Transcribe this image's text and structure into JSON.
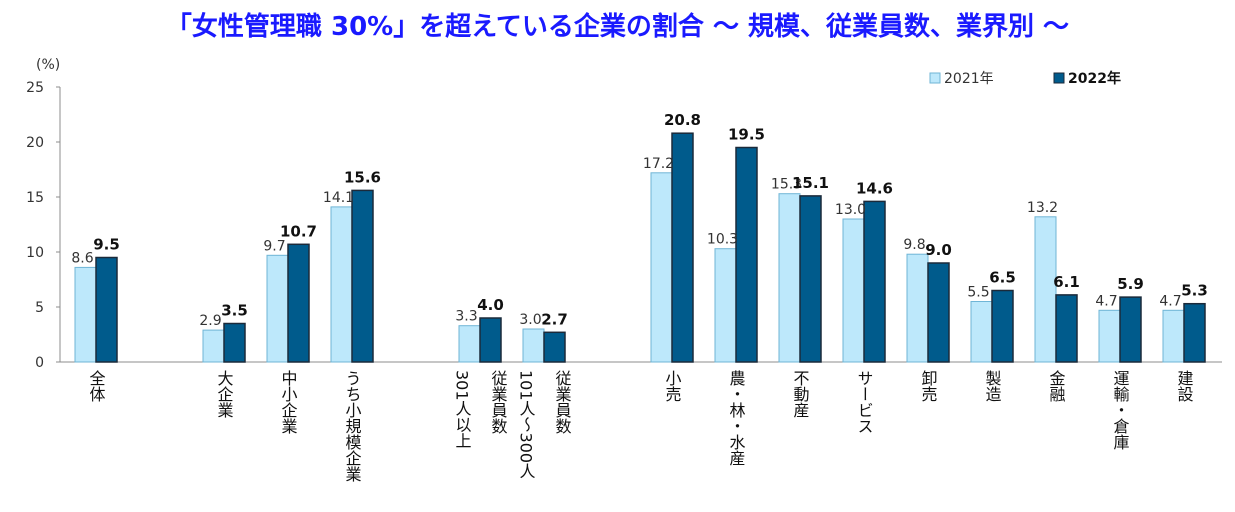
{
  "colors": {
    "title": "#1a1aff",
    "series2021": "#bde8fb",
    "series2021_edge": "#6fb5d6",
    "series2022": "#005b8c",
    "series2022_edge": "#1b2a3a",
    "axis": "#8c8c8c",
    "text": "#333333"
  },
  "chart_data": {
    "type": "bar",
    "title": "「女性管理職 30%」を超えている企業の割合 ～ 規模、従業員数、業界別 ～",
    "ylabel": "(%)",
    "ylim": [
      0,
      25
    ],
    "yticks": [
      0,
      5,
      10,
      15,
      20,
      25
    ],
    "legend_position": "top-right",
    "categories": [
      "全体",
      "大企業",
      "中小企業",
      "うち小規模企業",
      "301人以上",
      "101人～300人",
      "小売",
      "農・林・水産",
      "不動産",
      "サービス",
      "卸売",
      "製造",
      "金融",
      "運輸・倉庫",
      "建設"
    ],
    "category_label_lines": [
      [
        "全体"
      ],
      [
        "大企業"
      ],
      [
        "中小企業"
      ],
      [
        "うち小規模企業"
      ],
      [
        "301人以上",
        "従業員数"
      ],
      [
        "101人～300人",
        "従業員数"
      ],
      [
        "小売"
      ],
      [
        "農・林・水産"
      ],
      [
        "不動産"
      ],
      [
        "サービス"
      ],
      [
        "卸売"
      ],
      [
        "製造"
      ],
      [
        "金融"
      ],
      [
        "運輸・倉庫"
      ],
      [
        "建設"
      ]
    ],
    "series": [
      {
        "name": "2021年",
        "values": [
          8.6,
          2.9,
          9.7,
          14.1,
          3.3,
          3.0,
          17.2,
          10.3,
          15.3,
          13.0,
          9.8,
          5.5,
          13.2,
          4.7,
          4.7
        ],
        "labels": [
          "8.6",
          "2.9",
          "9.7",
          "14.1",
          "3.3",
          "3.0",
          "17.2",
          "10.3",
          "15.3",
          "13.0",
          "9.8",
          "5.5",
          "13.2",
          "4.7",
          "4.7"
        ]
      },
      {
        "name": "2022年",
        "values": [
          9.5,
          3.5,
          10.7,
          15.6,
          4.0,
          2.7,
          20.8,
          19.5,
          15.1,
          14.6,
          9.0,
          6.5,
          6.1,
          5.9,
          5.3
        ],
        "labels": [
          "9.5",
          "3.5",
          "10.7",
          "15.6",
          "4.0",
          "2.7",
          "20.8",
          "19.5",
          "15.1",
          "14.6",
          "9.0",
          "6.5",
          "6.1",
          "5.9",
          "5.3"
        ]
      }
    ]
  }
}
